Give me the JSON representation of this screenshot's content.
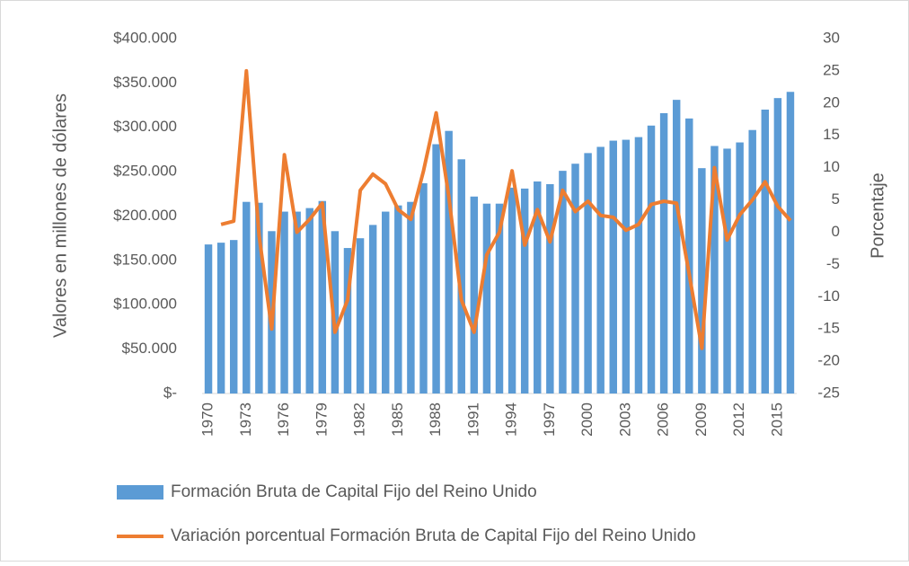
{
  "chart_data": {
    "type": "bar_line",
    "y_label": "Valores en millones de dólares",
    "y2_label": "Porcentaje",
    "categories": [
      "1970",
      null,
      null,
      "1973",
      null,
      null,
      "1976",
      null,
      null,
      "1979",
      null,
      null,
      "1982",
      null,
      null,
      "1985",
      null,
      null,
      "1988",
      null,
      null,
      "1991",
      null,
      null,
      "1994",
      null,
      null,
      "1997",
      null,
      null,
      "2000",
      null,
      null,
      "2003",
      null,
      null,
      "2006",
      null,
      null,
      "2009",
      null,
      null,
      "2012",
      null,
      null,
      "2015",
      null
    ],
    "series": [
      {
        "name": "Formación Bruta de Capital Fijo del Reino Unido",
        "type": "bar",
        "color": "#5b9bd5",
        "values": [
          168000,
          170000,
          173000,
          216000,
          215000,
          183000,
          205000,
          205000,
          209000,
          217000,
          183000,
          164000,
          175000,
          190000,
          205000,
          212000,
          216000,
          237000,
          281000,
          296000,
          264000,
          222000,
          214000,
          214000,
          232000,
          231000,
          239000,
          236000,
          251000,
          259000,
          271000,
          278000,
          285000,
          286000,
          289000,
          302000,
          316000,
          331000,
          310000,
          254000,
          279000,
          276000,
          283000,
          297000,
          320000,
          333000,
          340000
        ]
      },
      {
        "name": "Variación porcentual Formación Bruta de Capital Fijo del Reino Unido",
        "type": "line",
        "color": "#ed7d31",
        "axis": "y2",
        "values": [
          null,
          1.2,
          1.7,
          25,
          -0.5,
          -15,
          12,
          0,
          2,
          4.5,
          -15.5,
          -10.5,
          6.5,
          9,
          7.5,
          3.5,
          2,
          9.5,
          18.5,
          5.5,
          -10.5,
          -15.5,
          -3.5,
          0,
          9.5,
          -2,
          3.5,
          -1.5,
          6.5,
          3.2,
          4.8,
          2.6,
          2.3,
          0.3,
          1.2,
          4.3,
          4.8,
          4.5,
          -6.5,
          -18,
          10,
          -1.2,
          2.7,
          5,
          7.8,
          4,
          1.8
        ]
      }
    ],
    "ylim": [
      0,
      400000
    ],
    "yticks": [
      {
        "value": 0,
        "label": "$-"
      },
      {
        "value": 50000,
        "label": "$50.000"
      },
      {
        "value": 100000,
        "label": "$100.000"
      },
      {
        "value": 150000,
        "label": "$150.000"
      },
      {
        "value": 200000,
        "label": "$200.000"
      },
      {
        "value": 250000,
        "label": "$250.000"
      },
      {
        "value": 300000,
        "label": "$300.000"
      },
      {
        "value": 350000,
        "label": "$350.000"
      },
      {
        "value": 400000,
        "label": "$400.000"
      }
    ],
    "y2lim": [
      -25,
      30
    ],
    "y2ticks": [
      -25,
      -20,
      -15,
      -10,
      -5,
      0,
      5,
      10,
      15,
      20,
      25,
      30
    ],
    "grid": false
  }
}
